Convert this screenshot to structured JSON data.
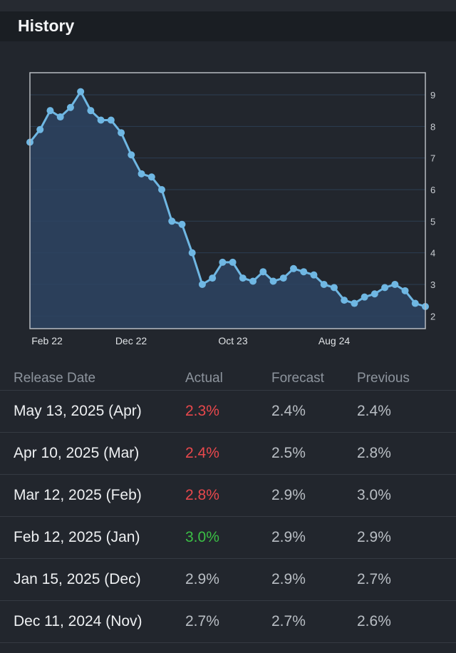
{
  "header": {
    "title": "History"
  },
  "chart_data": {
    "type": "area",
    "title": "",
    "xlabel": "",
    "ylabel": "",
    "ylim": [
      1.6,
      9.7
    ],
    "y_ticks": [
      2,
      3,
      4,
      5,
      6,
      7,
      8,
      9
    ],
    "x_ticks": [
      "Feb 22",
      "Dec 22",
      "Oct 23",
      "Aug 24"
    ],
    "grid": true,
    "line_color": "#6fb7e3",
    "fill_color": "#2d4463",
    "series": [
      {
        "values": [
          7.5,
          7.9,
          8.5,
          8.3,
          8.6,
          9.1,
          8.5,
          8.2,
          8.2,
          7.8,
          7.1,
          6.5,
          6.4,
          6.0,
          5.0,
          4.9,
          4.0,
          3.0,
          3.2,
          3.7,
          3.7,
          3.2,
          3.1,
          3.4,
          3.1,
          3.2,
          3.5,
          3.4,
          3.3,
          3.0,
          2.9,
          2.5,
          2.4,
          2.6,
          2.7,
          2.9,
          3.0,
          2.8,
          2.4,
          2.3
        ]
      }
    ]
  },
  "table": {
    "headers": {
      "release_date": "Release Date",
      "actual": "Actual",
      "forecast": "Forecast",
      "previous": "Previous"
    },
    "rows": [
      {
        "date": "May 13, 2025 (Apr)",
        "actual": "2.3%",
        "forecast": "2.4%",
        "previous": "2.4%",
        "actual_color": "#e8484c"
      },
      {
        "date": "Apr 10, 2025 (Mar)",
        "actual": "2.4%",
        "forecast": "2.5%",
        "previous": "2.8%",
        "actual_color": "#e8484c"
      },
      {
        "date": "Mar 12, 2025 (Feb)",
        "actual": "2.8%",
        "forecast": "2.9%",
        "previous": "3.0%",
        "actual_color": "#e8484c"
      },
      {
        "date": "Feb 12, 2025 (Jan)",
        "actual": "3.0%",
        "forecast": "2.9%",
        "previous": "2.9%",
        "actual_color": "#3bbf45"
      },
      {
        "date": "Jan 15, 2025 (Dec)",
        "actual": "2.9%",
        "forecast": "2.9%",
        "previous": "2.7%",
        "actual_color": "#b9bec4"
      },
      {
        "date": "Dec 11, 2024 (Nov)",
        "actual": "2.7%",
        "forecast": "2.7%",
        "previous": "2.6%",
        "actual_color": "#b9bec4"
      }
    ]
  }
}
